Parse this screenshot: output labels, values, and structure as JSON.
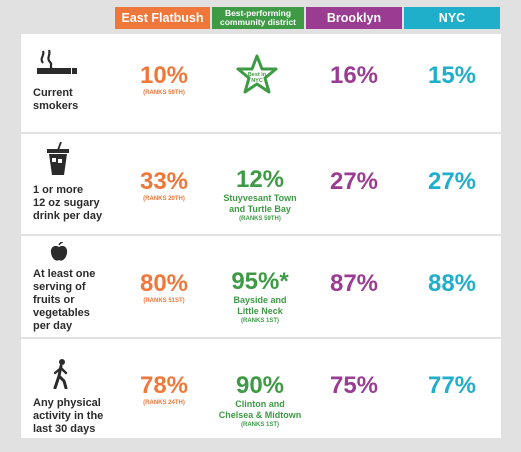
{
  "columns": {
    "east_flatbush": "East Flatbush",
    "best_line1": "Best-performing",
    "best_line2": "community district",
    "brooklyn": "Brooklyn",
    "nyc": "NYC"
  },
  "rows": [
    {
      "label_lines": [
        "Current",
        "smokers"
      ],
      "icon": "cigarette-icon",
      "east_flatbush": "10%",
      "east_flatbush_rank": "(RANKS 59TH)",
      "best_badge_line1": "Best in",
      "best_badge_line2": "NYC",
      "brooklyn": "16%",
      "nyc": "15%"
    },
    {
      "label_lines": [
        "1 or more",
        "12 oz sugary",
        "drink per day"
      ],
      "icon": "soda-cup-icon",
      "east_flatbush": "33%",
      "east_flatbush_rank": "(RANKS 20TH)",
      "best_value": "12%",
      "best_place_lines": [
        "Stuyvesant Town",
        "and Turtle Bay"
      ],
      "best_rank": "(RANKS 59TH)",
      "brooklyn": "27%",
      "nyc": "27%"
    },
    {
      "label_lines": [
        "At least one",
        "serving of",
        "fruits or",
        "vegetables",
        "per day"
      ],
      "icon": "apple-icon",
      "east_flatbush": "80%",
      "east_flatbush_rank": "(RANKS 51ST)",
      "best_value": "95%*",
      "best_place_lines": [
        "Bayside and",
        "Little Neck"
      ],
      "best_rank": "(RANKS 1ST)",
      "brooklyn": "87%",
      "nyc": "88%"
    },
    {
      "label_lines": [
        "Any physical",
        "activity in the",
        "last 30 days"
      ],
      "icon": "walking-person-icon",
      "east_flatbush": "78%",
      "east_flatbush_rank": "(RANKS 24TH)",
      "best_value": "90%",
      "best_place_lines": [
        "Clinton and",
        "Chelsea & Midtown"
      ],
      "best_rank": "(RANKS 1ST)",
      "brooklyn": "75%",
      "nyc": "77%"
    }
  ],
  "colors": {
    "east_flatbush": "#f0773a",
    "best": "#3f9a46",
    "brooklyn": "#9b3c93",
    "nyc": "#1fafcb"
  }
}
